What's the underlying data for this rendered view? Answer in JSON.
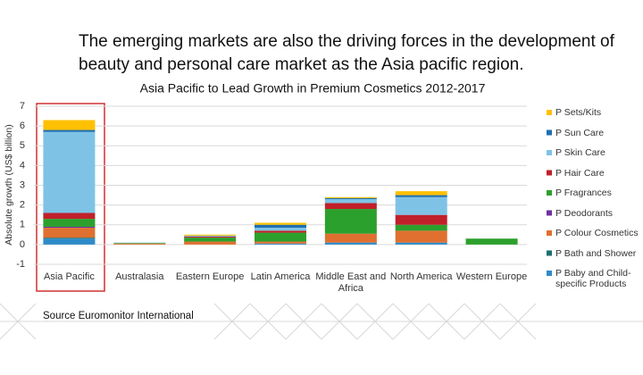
{
  "heading": "The emerging markets are also the driving forces in the development of beauty and personal care market as the Asia pacific region.",
  "source": "Source Euromonitor International",
  "chart_data": {
    "type": "bar",
    "stacked": true,
    "title": "Asia Pacific to Lead Growth in Premium Cosmetics 2012-2017",
    "y_label": "Absolute growth (US$ billion)",
    "categories": [
      "Asia Pacific",
      "Australasia",
      "Eastern Europe",
      "Latin America",
      "Middle East and Africa",
      "North America",
      "Western Europe"
    ],
    "series": [
      {
        "name": "P Baby and Child-specific Products",
        "color": "#2e8bc9",
        "values": [
          0.3,
          0,
          0,
          0.05,
          0.1,
          0.1,
          0
        ]
      },
      {
        "name": "P Bath and Shower",
        "color": "#1f6f6f",
        "values": [
          0.05,
          0,
          0,
          0,
          0,
          0,
          0
        ]
      },
      {
        "name": "P Colour Cosmetics",
        "color": "#e07030",
        "values": [
          0.5,
          0.05,
          0.15,
          0.1,
          0.45,
          0.6,
          0
        ]
      },
      {
        "name": "P Deodorants",
        "color": "#7030a0",
        "values": [
          0.05,
          0,
          0,
          0,
          0,
          0,
          0
        ]
      },
      {
        "name": "P Fragrances",
        "color": "#2ca02c",
        "values": [
          0.4,
          0.03,
          0.2,
          0.45,
          1.25,
          0.3,
          0.3
        ]
      },
      {
        "name": "P Hair Care",
        "color": "#c0202a",
        "values": [
          0.3,
          0,
          0.05,
          0.1,
          0.3,
          0.5,
          0
        ]
      },
      {
        "name": "P Skin Care",
        "color": "#7ec3e6",
        "values": [
          4.1,
          0.02,
          0.05,
          0.15,
          0.2,
          0.9,
          0
        ]
      },
      {
        "name": "P Sun Care",
        "color": "#1f6fb0",
        "values": [
          0.1,
          0,
          0,
          0.15,
          0.05,
          0.1,
          0
        ]
      },
      {
        "name": "P Sets/Kits",
        "color": "#ffc000",
        "values": [
          0.5,
          0,
          0.05,
          0.1,
          0.05,
          0.2,
          0
        ]
      }
    ],
    "ylim": [
      -1,
      7
    ],
    "yticks": [
      -1,
      0,
      1,
      2,
      3,
      4,
      5,
      6,
      7
    ],
    "grid": true,
    "legend": "right"
  }
}
